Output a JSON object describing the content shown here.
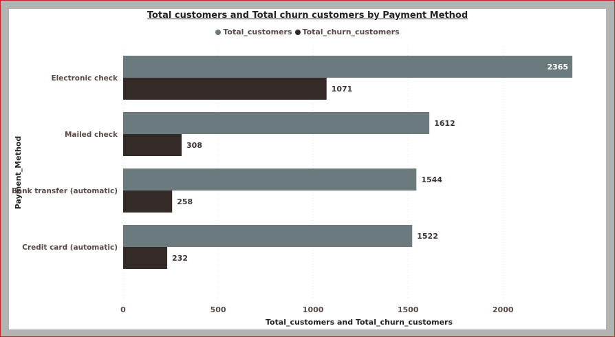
{
  "chart_data": {
    "type": "bar",
    "orientation": "horizontal",
    "title": "Total customers and Total churn customers by Payment Method",
    "xlabel": "Total_customers and Total_churn_customers",
    "ylabel": "Payment_Method",
    "categories": [
      "Electronic check",
      "Mailed check",
      "Bank transfer (automatic)",
      "Credit card (automatic)"
    ],
    "series": [
      {
        "name": "Total_customers",
        "values": [
          2365,
          1612,
          1544,
          1522
        ],
        "color": "#6b7a7c"
      },
      {
        "name": "Total_churn_customers",
        "values": [
          1071,
          308,
          258,
          232
        ],
        "color": "#342a28"
      }
    ],
    "xlim": [
      0,
      2365
    ],
    "xticks": [
      "0",
      "500",
      "1000",
      "1500",
      "2000"
    ],
    "grid": true,
    "legend_position": "top-center"
  }
}
